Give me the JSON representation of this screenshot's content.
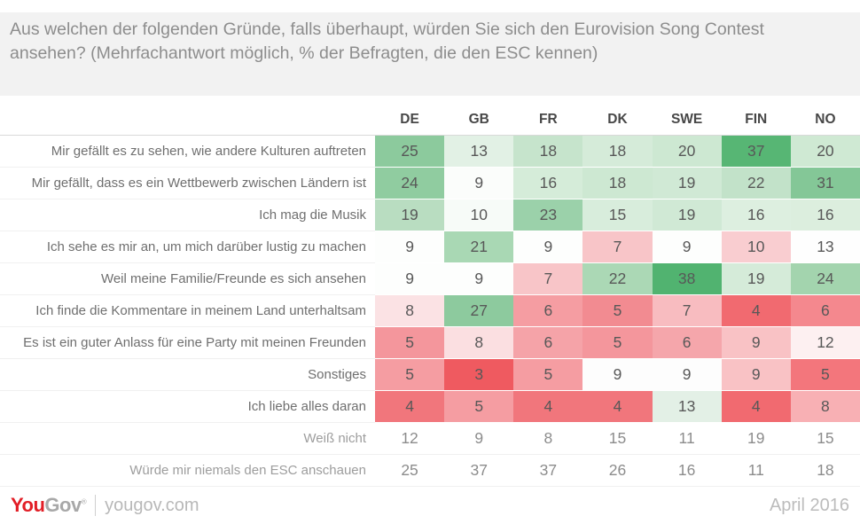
{
  "title": "Aus welchen der folgenden Gründe, falls überhaupt, würden Sie sich den Eurovision Song Contest ansehen? (Mehrfachantwort möglich, % der Befragten, die den ESC kennen)",
  "footer": {
    "brand_you": "You",
    "brand_gov": "Gov",
    "brand_mark": "®",
    "site": "yougov.com",
    "date": "April 2016"
  },
  "chart_data": {
    "type": "heatmap",
    "title": "Aus welchen der folgenden Gründe, falls überhaupt, würden Sie sich den Eurovision Song Contest ansehen? (Mehrfachantwort möglich, % der Befragten, die den ESC kennen)",
    "unit": "%",
    "legend": "none",
    "palette": {
      "high": "#51b370",
      "neutral": "#ffffff",
      "low": "#ef5a60"
    },
    "columns": [
      "DE",
      "GB",
      "FR",
      "DK",
      "SWE",
      "FIN",
      "NO"
    ],
    "rows": [
      {
        "label": "Mir gefällt es zu sehen, wie andere Kulturen auftreten",
        "values": [
          25,
          13,
          18,
          18,
          20,
          37,
          20
        ],
        "muted": false,
        "colors": [
          "#8cca9d",
          "#e2f1e5",
          "#c6e4cc",
          "#d5ebd9",
          "#cde8d2",
          "#57b674",
          "#cfe9d3"
        ]
      },
      {
        "label": "Mir gefällt, dass es ein Wettbewerb zwischen Ländern ist",
        "values": [
          24,
          9,
          16,
          18,
          19,
          22,
          31
        ],
        "muted": false,
        "colors": [
          "#90cca0",
          "#fbfdfb",
          "#d5ecd9",
          "#cde8d2",
          "#d0e9d5",
          "#c2e2c9",
          "#84c797"
        ]
      },
      {
        "label": "Ich mag die Musik",
        "values": [
          19,
          10,
          23,
          15,
          19,
          16,
          16
        ],
        "muted": false,
        "colors": [
          "#b9ddc1",
          "#f7fbf8",
          "#9bd1aa",
          "#d8eddc",
          "#d0e9d5",
          "#ddefe0",
          "#dceede"
        ]
      },
      {
        "label": "Ich sehe es mir an, um mich darüber lustig zu machen",
        "values": [
          9,
          21,
          9,
          7,
          9,
          10,
          13
        ],
        "muted": false,
        "colors": [
          "#fdfefd",
          "#a9d8b4",
          "#fdfefd",
          "#f8c5c8",
          "#fdfefd",
          "#f9cdd0",
          "#fefefe"
        ]
      },
      {
        "label": "Weil meine Familie/Freunde es sich ansehen",
        "values": [
          9,
          9,
          7,
          22,
          38,
          19,
          24
        ],
        "muted": false,
        "colors": [
          "#fdfefd",
          "#fdfefd",
          "#f8c5c8",
          "#abd8b5",
          "#51b370",
          "#d5ebd9",
          "#a3d4ae"
        ]
      },
      {
        "label": "Ich finde die Kommentare in meinem Land unterhaltsam",
        "values": [
          8,
          27,
          6,
          5,
          7,
          4,
          6
        ],
        "muted": false,
        "colors": [
          "#fbe2e4",
          "#8dca9e",
          "#f59da2",
          "#f28b91",
          "#f8bcc0",
          "#f16a70",
          "#f4888e"
        ]
      },
      {
        "label": "Es ist ein guter Anlass für eine Party mit meinen Freunden",
        "values": [
          5,
          8,
          6,
          5,
          6,
          9,
          12
        ],
        "muted": false,
        "colors": [
          "#f4969c",
          "#fbdfe1",
          "#f5a3a8",
          "#f4969c",
          "#f5a6ab",
          "#f9c2c5",
          "#fdf0f1"
        ]
      },
      {
        "label": "Sonstiges",
        "values": [
          5,
          3,
          5,
          9,
          9,
          9,
          5
        ],
        "muted": false,
        "colors": [
          "#f59da2",
          "#ef5a60",
          "#f59da2",
          "#fdfdfd",
          "#fdfdfd",
          "#f9c2c5",
          "#f3767c"
        ]
      },
      {
        "label": "Ich liebe alles daran",
        "values": [
          4,
          5,
          4,
          4,
          13,
          4,
          8
        ],
        "muted": false,
        "colors": [
          "#f1767c",
          "#f59da2",
          "#f1767c",
          "#f1767c",
          "#e3f0e6",
          "#f16a70",
          "#f8b0b4"
        ]
      },
      {
        "label": "Weiß nicht",
        "values": [
          12,
          9,
          8,
          15,
          11,
          19,
          15
        ],
        "muted": true,
        "colors": [
          "#ffffff",
          "#ffffff",
          "#ffffff",
          "#ffffff",
          "#ffffff",
          "#ffffff",
          "#ffffff"
        ]
      },
      {
        "label": "Würde mir niemals den ESC anschauen",
        "values": [
          25,
          37,
          37,
          26,
          16,
          11,
          18
        ],
        "muted": true,
        "colors": [
          "#ffffff",
          "#ffffff",
          "#ffffff",
          "#ffffff",
          "#ffffff",
          "#ffffff",
          "#ffffff"
        ]
      }
    ]
  }
}
